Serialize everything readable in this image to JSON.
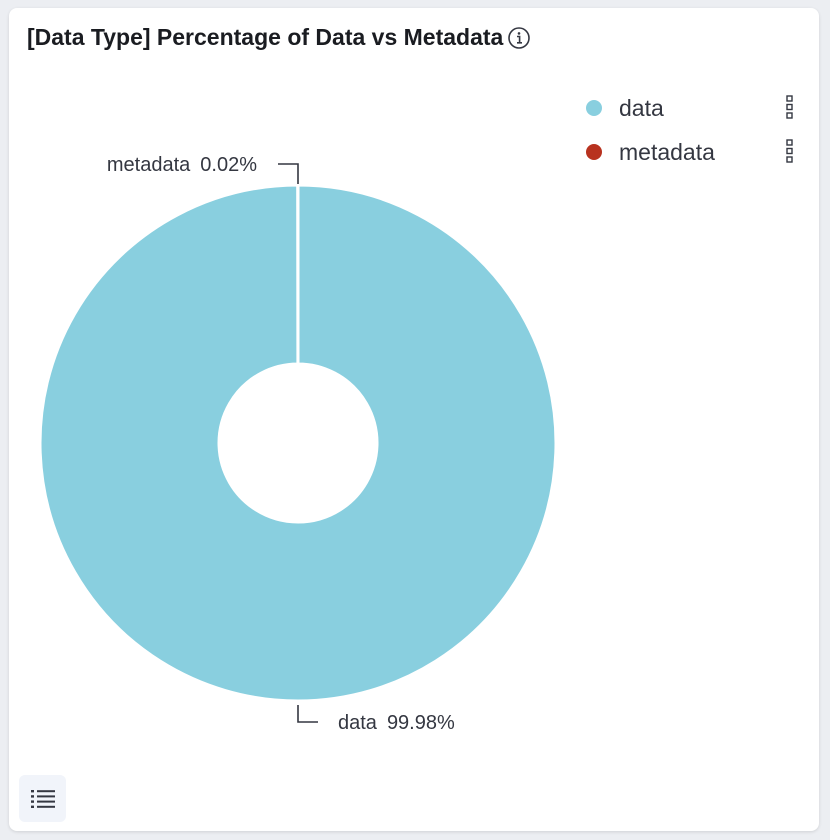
{
  "panel": {
    "title": "[Data Type] Percentage of Data vs Metadata",
    "info_icon": "info-icon",
    "list_button_icon": "list-icon"
  },
  "chart_data": {
    "type": "pie",
    "donut": true,
    "title": "[Data Type] Percentage of Data vs Metadata",
    "slices": [
      {
        "label": "data",
        "value": 99.98,
        "value_label": "99.98%",
        "color": "#89cfdf"
      },
      {
        "label": "metadata",
        "value": 0.02,
        "value_label": "0.02%",
        "color": "#b8321f"
      }
    ],
    "legend": {
      "placement": "top-right",
      "entries": [
        "data",
        "metadata"
      ]
    }
  }
}
